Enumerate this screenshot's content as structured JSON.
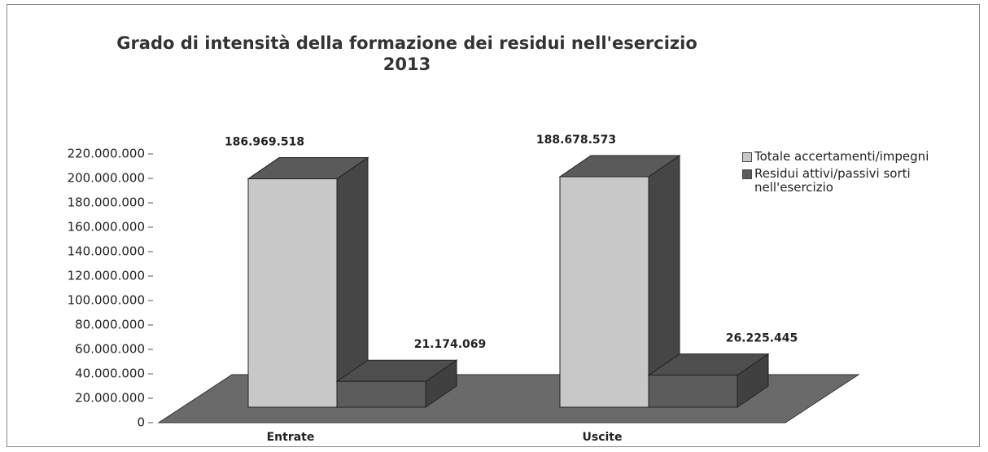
{
  "chart_data": {
    "type": "bar3d",
    "title": "Grado di intensità della formazione dei residui nell'esercizio 2013",
    "categories": [
      "Entrate",
      "Uscite"
    ],
    "series": [
      {
        "name": "Totale accertamenti/impegni",
        "color": "#c8c8c8",
        "values": [
          186969518,
          188678573
        ],
        "value_labels": [
          "186.969.518",
          "188.678.573"
        ]
      },
      {
        "name": "Residui attivi/passivi sorti nell'esercizio",
        "color": "#5c5c5c",
        "values": [
          21174069,
          26225445
        ],
        "value_labels": [
          "21.174.069",
          "26.225.445"
        ]
      }
    ],
    "ylim": [
      0,
      220000000
    ],
    "yticks": [
      {
        "value": 0,
        "label": "0"
      },
      {
        "value": 20000000,
        "label": "20.000.000"
      },
      {
        "value": 40000000,
        "label": "40.000.000"
      },
      {
        "value": 60000000,
        "label": "60.000.000"
      },
      {
        "value": 80000000,
        "label": "80.000.000"
      },
      {
        "value": 100000000,
        "label": "100.000.000"
      },
      {
        "value": 120000000,
        "label": "120.000.000"
      },
      {
        "value": 140000000,
        "label": "140.000.000"
      },
      {
        "value": 160000000,
        "label": "160.000.000"
      },
      {
        "value": 180000000,
        "label": "180.000.000"
      },
      {
        "value": 200000000,
        "label": "200.000.000"
      },
      {
        "value": 220000000,
        "label": "220.000.000"
      }
    ],
    "legend": "right"
  }
}
